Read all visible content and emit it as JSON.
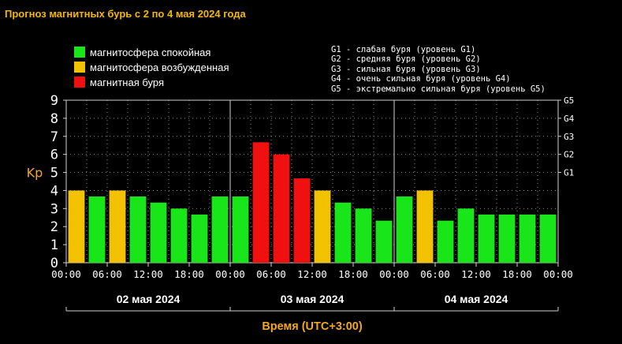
{
  "title": "Прогноз магнитных бурь с 2 по 4 мая 2024 года",
  "colors": {
    "calm": "#19e619",
    "excited": "#f2c200",
    "storm": "#f01010",
    "title": "#f5b800",
    "axis_label": "#f5a623"
  },
  "legend": [
    {
      "label": "магнитосфера спокойная",
      "color_key": "calm"
    },
    {
      "label": "магнитосфера возбужденная",
      "color_key": "excited"
    },
    {
      "label": "магнитная буря",
      "color_key": "storm"
    }
  ],
  "g_levels": [
    "G1 - слабая буря (уровень G1)",
    "G2 - средняя буря (уровень G2)",
    "G3 - сильная буря (уровень G3)",
    "G4 - очень сильная буря (уровень G4)",
    "G5 - экстремально сильная буря (уровень G5)"
  ],
  "chart_data": {
    "type": "bar",
    "ylabel": "Kp",
    "xlabel": "Время (UTC+3:00)",
    "ylim": [
      0,
      9
    ],
    "y_ticks": [
      "0",
      "1",
      "2",
      "3",
      "4",
      "5",
      "6",
      "7",
      "8",
      "9"
    ],
    "y2_ticks": [
      "G1",
      "G2",
      "G3",
      "G4",
      "G5"
    ],
    "x_ticks": [
      "00:00",
      "06:00",
      "12:00",
      "18:00",
      "00:00",
      "06:00",
      "12:00",
      "18:00",
      "00:00",
      "06:00",
      "12:00",
      "18:00",
      "00:00"
    ],
    "days": [
      "02 мая 2024",
      "03 мая 2024",
      "04 мая 2024"
    ],
    "bars_per_day": 8,
    "values": [
      4.0,
      3.67,
      4.0,
      3.67,
      3.33,
      3.0,
      2.67,
      3.67,
      3.67,
      6.67,
      6.0,
      4.67,
      4.0,
      3.33,
      3.0,
      2.33,
      3.67,
      4.0,
      2.33,
      3.0,
      2.67,
      2.67,
      2.67,
      2.67
    ],
    "levels": [
      "excited",
      "calm",
      "excited",
      "calm",
      "calm",
      "calm",
      "calm",
      "calm",
      "calm",
      "storm",
      "storm",
      "storm",
      "excited",
      "calm",
      "calm",
      "calm",
      "calm",
      "excited",
      "calm",
      "calm",
      "calm",
      "calm",
      "calm",
      "calm"
    ],
    "grid": true
  }
}
